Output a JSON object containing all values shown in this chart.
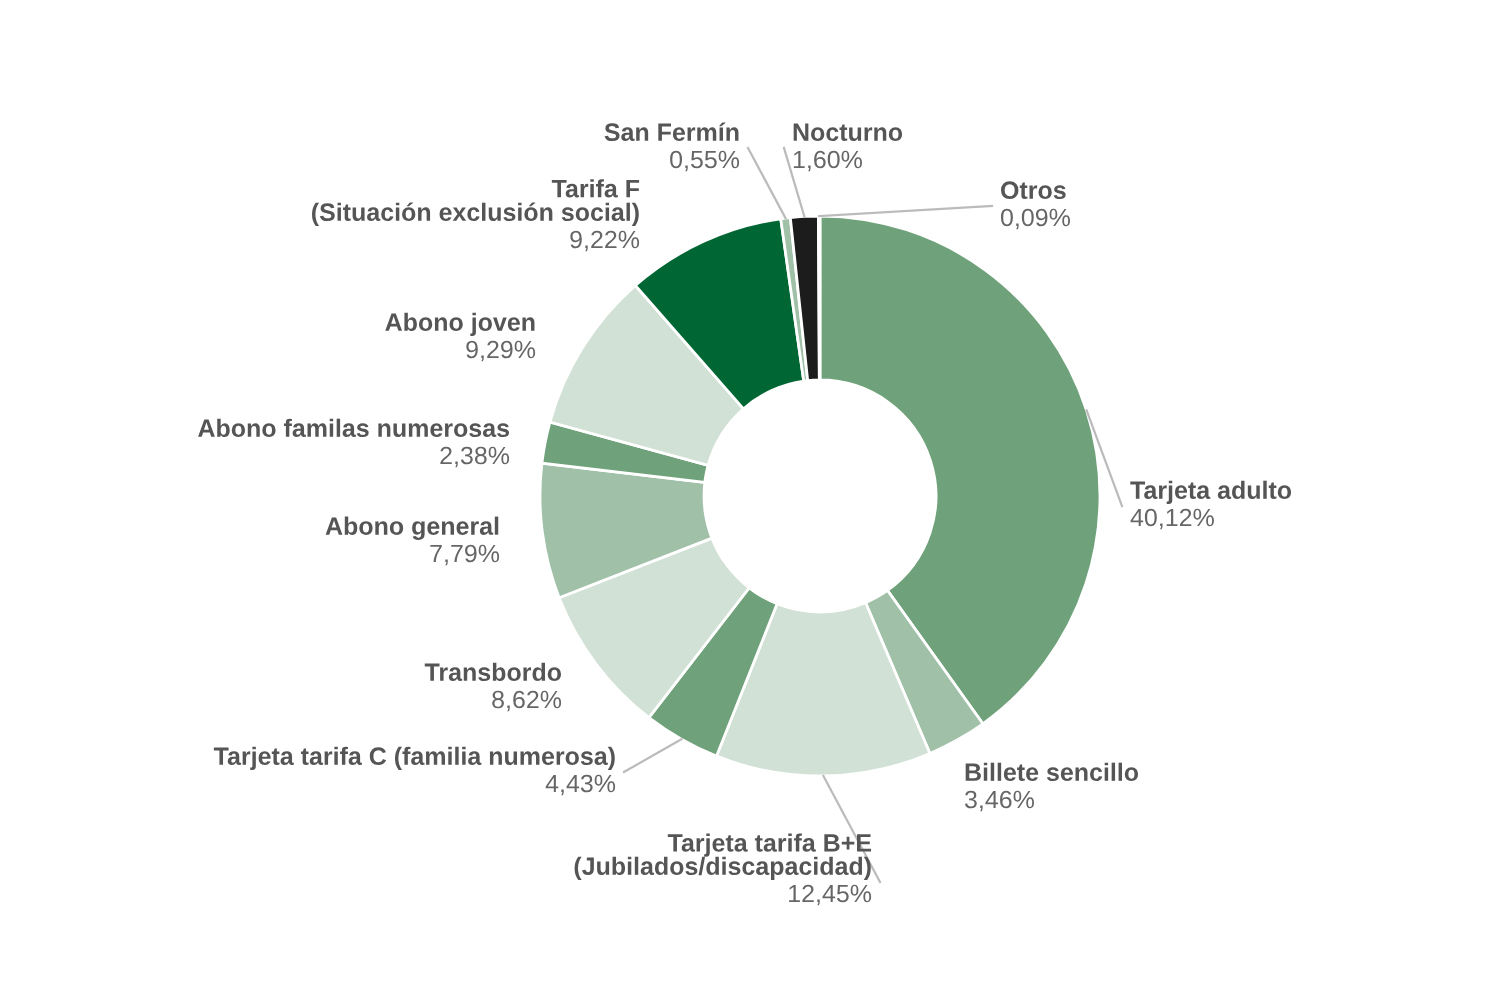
{
  "chart_data": {
    "type": "donut",
    "categories": [
      "Tarjeta adulto",
      "Billete sencillo",
      "Tarjeta tarifa B+E\n(Jubilados/discapacidad)",
      "Tarjeta tarifa C (familia numerosa)",
      "Transbordo",
      "Abono general",
      "Abono familas numerosas",
      "Abono joven",
      "Tarifa F\n(Situación exclusión social)",
      "San Fermín",
      "Nocturno",
      "Otros"
    ],
    "values": [
      40.12,
      3.46,
      12.45,
      4.43,
      8.62,
      7.79,
      2.38,
      9.29,
      9.22,
      0.55,
      1.6,
      0.09
    ],
    "colors": [
      "#6fa27a",
      "#a0c0a8",
      "#d1e1d5",
      "#6fa27a",
      "#d1e1d5",
      "#a0c0a8",
      "#6fa27a",
      "#d1e1d5",
      "#006633",
      "#a0c0a8",
      "#1c1c1c",
      "#d1e1d5"
    ],
    "value_labels": [
      "40,12%",
      "3,46%",
      "12,45%",
      "4,43%",
      "8,62%",
      "7,79%",
      "2,38%",
      "9,29%",
      "9,22%",
      "0,55%",
      "1,60%",
      "0,09%"
    ]
  }
}
